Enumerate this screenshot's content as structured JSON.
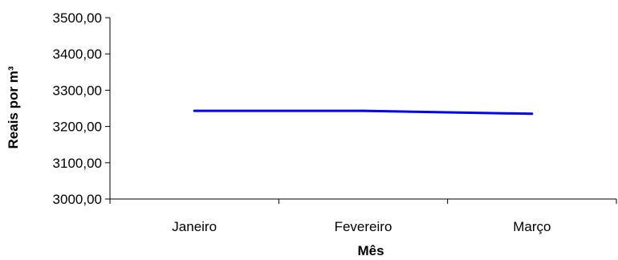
{
  "chart_data": {
    "type": "line",
    "categories": [
      "Janeiro",
      "Fevereiro",
      "Março"
    ],
    "series": [
      {
        "values": [
          3243,
          3243,
          3235
        ]
      }
    ],
    "title": "",
    "xlabel": "Mês",
    "ylabel": "Reais por m³",
    "ylim": [
      3000,
      3500
    ],
    "yticks": [
      "3000,00",
      "3100,00",
      "3200,00",
      "3300,00",
      "3400,00",
      "3500,00"
    ],
    "grid": false,
    "legend": "none",
    "line_color": "#0000ff"
  }
}
